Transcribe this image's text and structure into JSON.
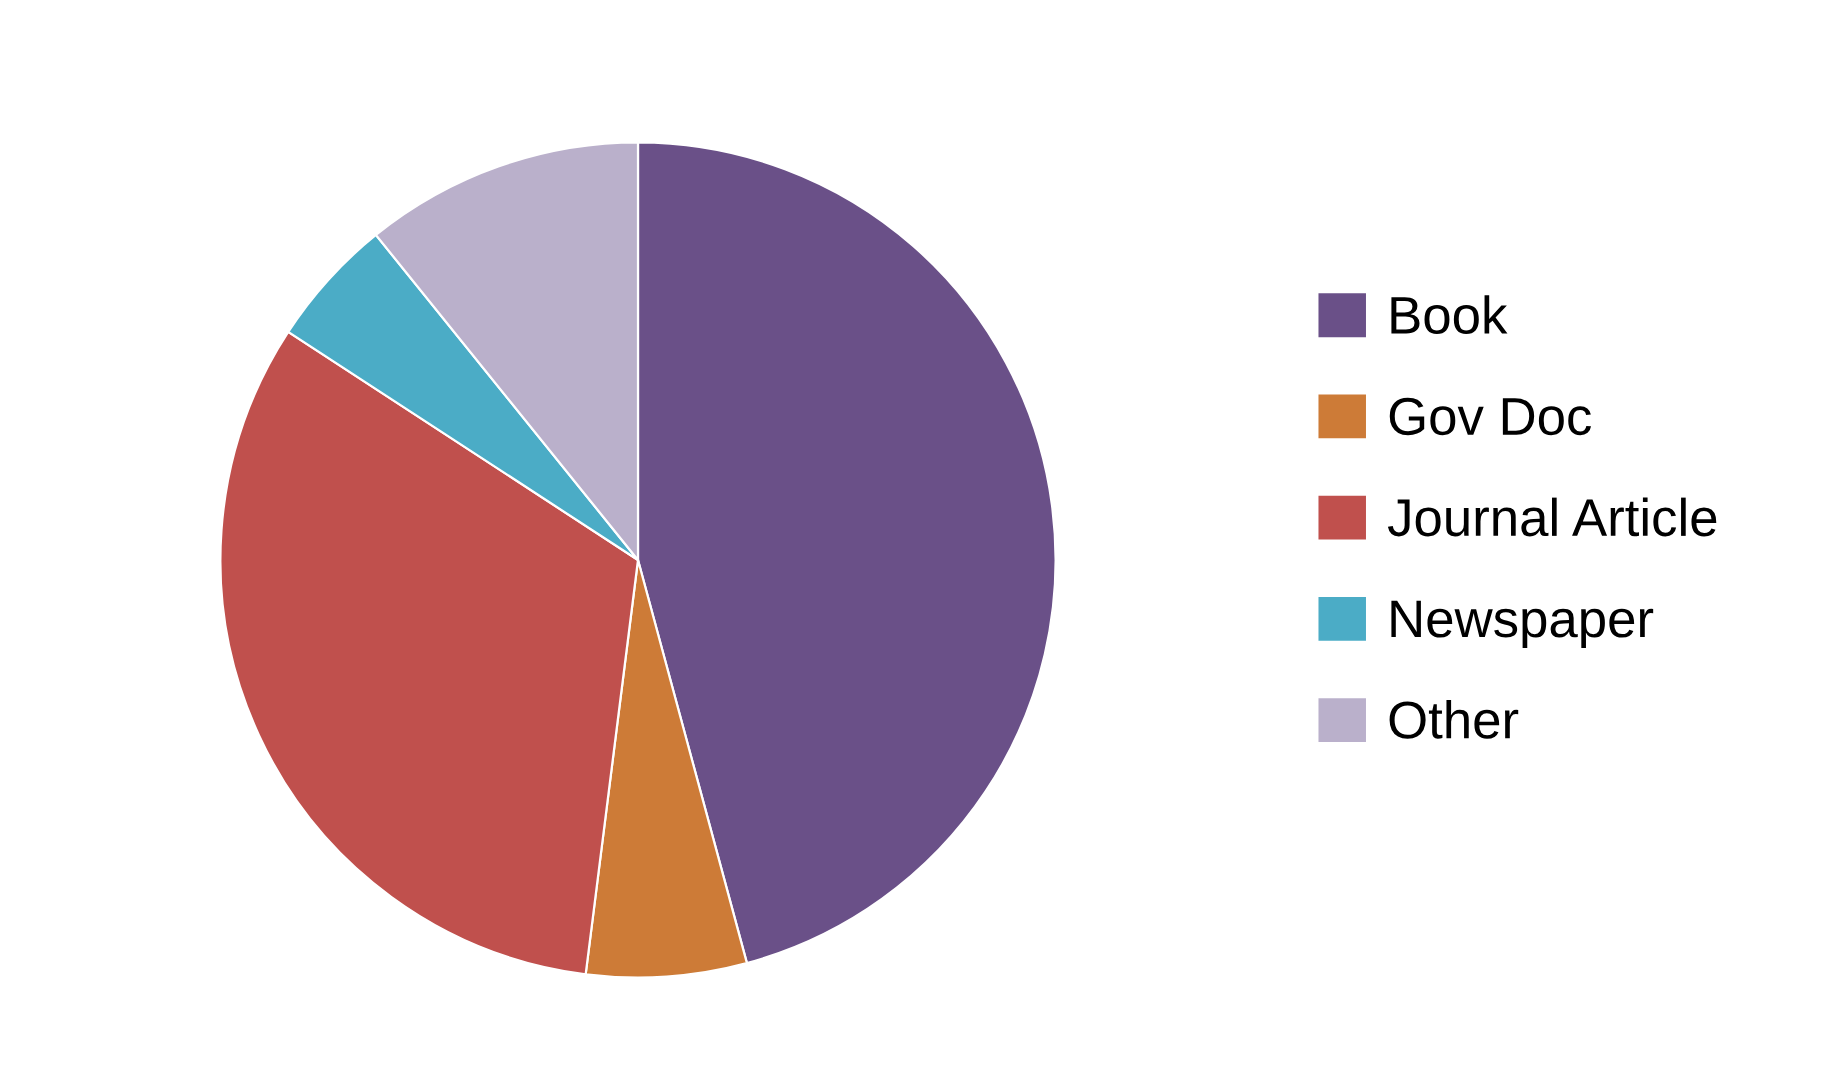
{
  "chart_data": {
    "type": "pie",
    "categories": [
      "Book",
      "Gov Doc",
      "Journal Article",
      "Newspaper",
      "Other"
    ],
    "values": [
      45.8,
      6.2,
      32.2,
      5,
      10.8
    ],
    "colors": [
      "#6a5088",
      "#cd7b37",
      "#c0504d",
      "#4bacc6",
      "#bab0cb"
    ],
    "legend": "right"
  }
}
